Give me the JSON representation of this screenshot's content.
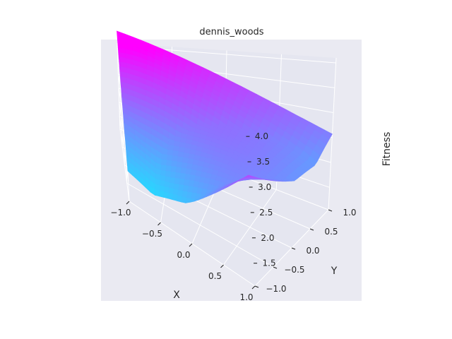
{
  "chart_data": {
    "type": "surface",
    "title": "dennis_woods",
    "xlabel": "X",
    "ylabel": "Y",
    "zlabel": "Fitness",
    "x_ticks": [
      "−1.0",
      "−0.5",
      "0.0",
      "0.5",
      "1.0"
    ],
    "y_ticks": [
      "−1.0",
      "−0.5",
      "0.0",
      "0.5",
      "1.0"
    ],
    "z_ticks": [
      "1.5",
      "2.0",
      "2.5",
      "3.0",
      "3.5",
      "4.0"
    ],
    "x_range": [
      -1,
      1
    ],
    "y_range": [
      -1,
      1
    ],
    "z_range": [
      1.05,
      4.1
    ],
    "colormap": "cool",
    "colormap_colors": [
      "#00ffff",
      "#ff00ff"
    ],
    "grid": true,
    "pane_color": "#e5e6f0"
  }
}
